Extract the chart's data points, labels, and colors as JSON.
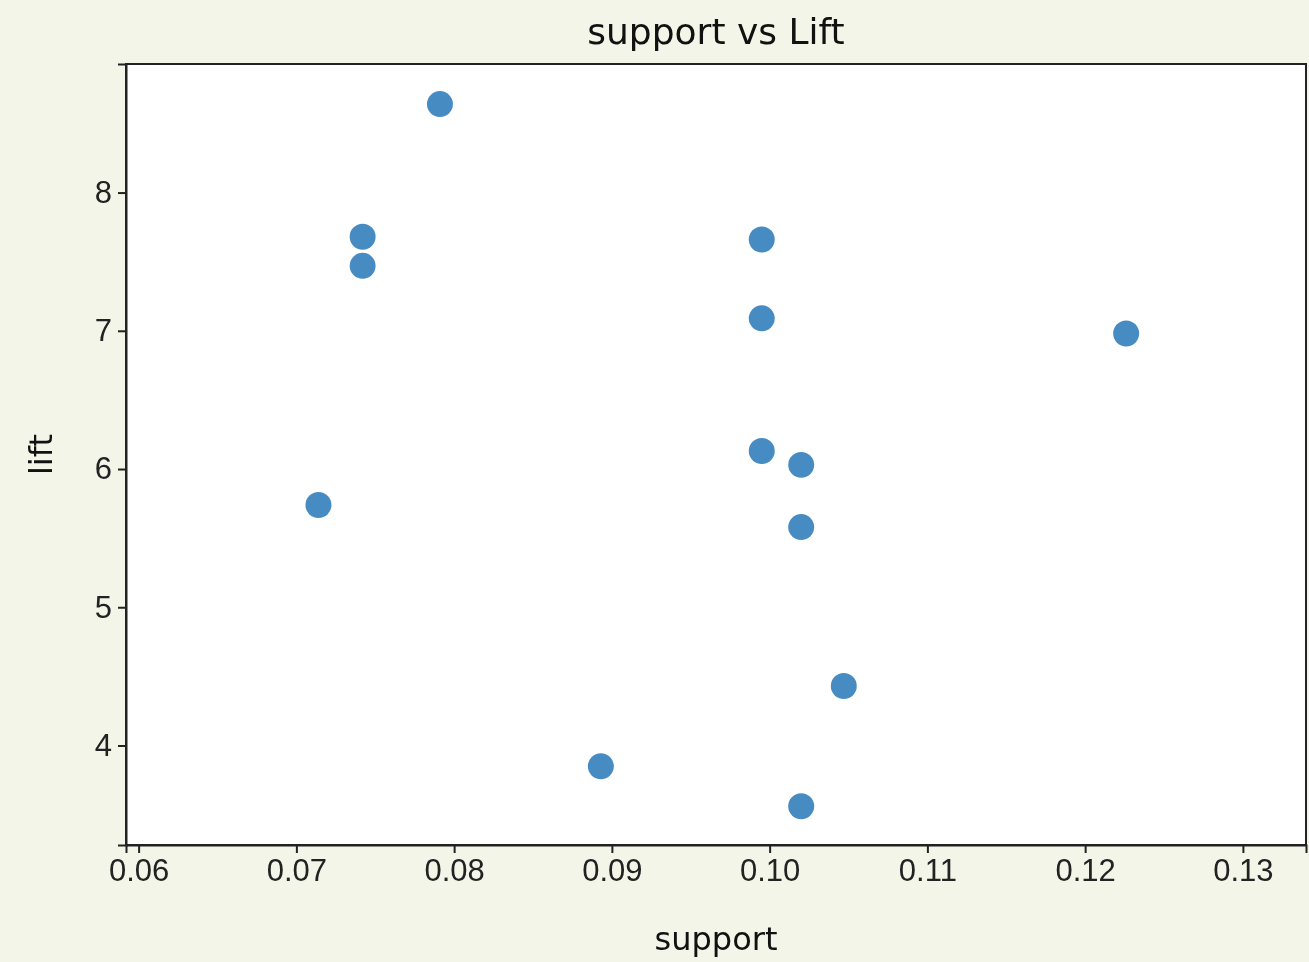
{
  "chart_data": {
    "type": "scatter",
    "title": "support vs Lift",
    "xlabel": "support",
    "ylabel": "lift",
    "x": [
      0.0791,
      0.0742,
      0.0742,
      0.0995,
      0.0995,
      0.1226,
      0.0995,
      0.102,
      0.102,
      0.0714,
      0.1047,
      0.0893,
      0.102
    ],
    "series": [
      {
        "color": "#3d85c0",
        "values": [
          8.64,
          7.68,
          7.47,
          7.66,
          7.09,
          6.98,
          6.13,
          6.03,
          5.58,
          5.74,
          4.43,
          3.85,
          3.56
        ]
      }
    ],
    "xlim": [
      0.0592,
      0.134
    ],
    "ylim": [
      3.28,
      8.93
    ],
    "xticks": [
      {
        "value": 0.06,
        "label": "0.06"
      },
      {
        "value": 0.07,
        "label": "0.07"
      },
      {
        "value": 0.08,
        "label": "0.08"
      },
      {
        "value": 0.09,
        "label": "0.09"
      },
      {
        "value": 0.1,
        "label": "0.10"
      },
      {
        "value": 0.11,
        "label": "0.11"
      },
      {
        "value": 0.12,
        "label": "0.12"
      },
      {
        "value": 0.13,
        "label": "0.13"
      }
    ],
    "yticks": [
      4,
      5,
      6,
      7,
      8
    ],
    "marker": "circle",
    "grid": false
  }
}
